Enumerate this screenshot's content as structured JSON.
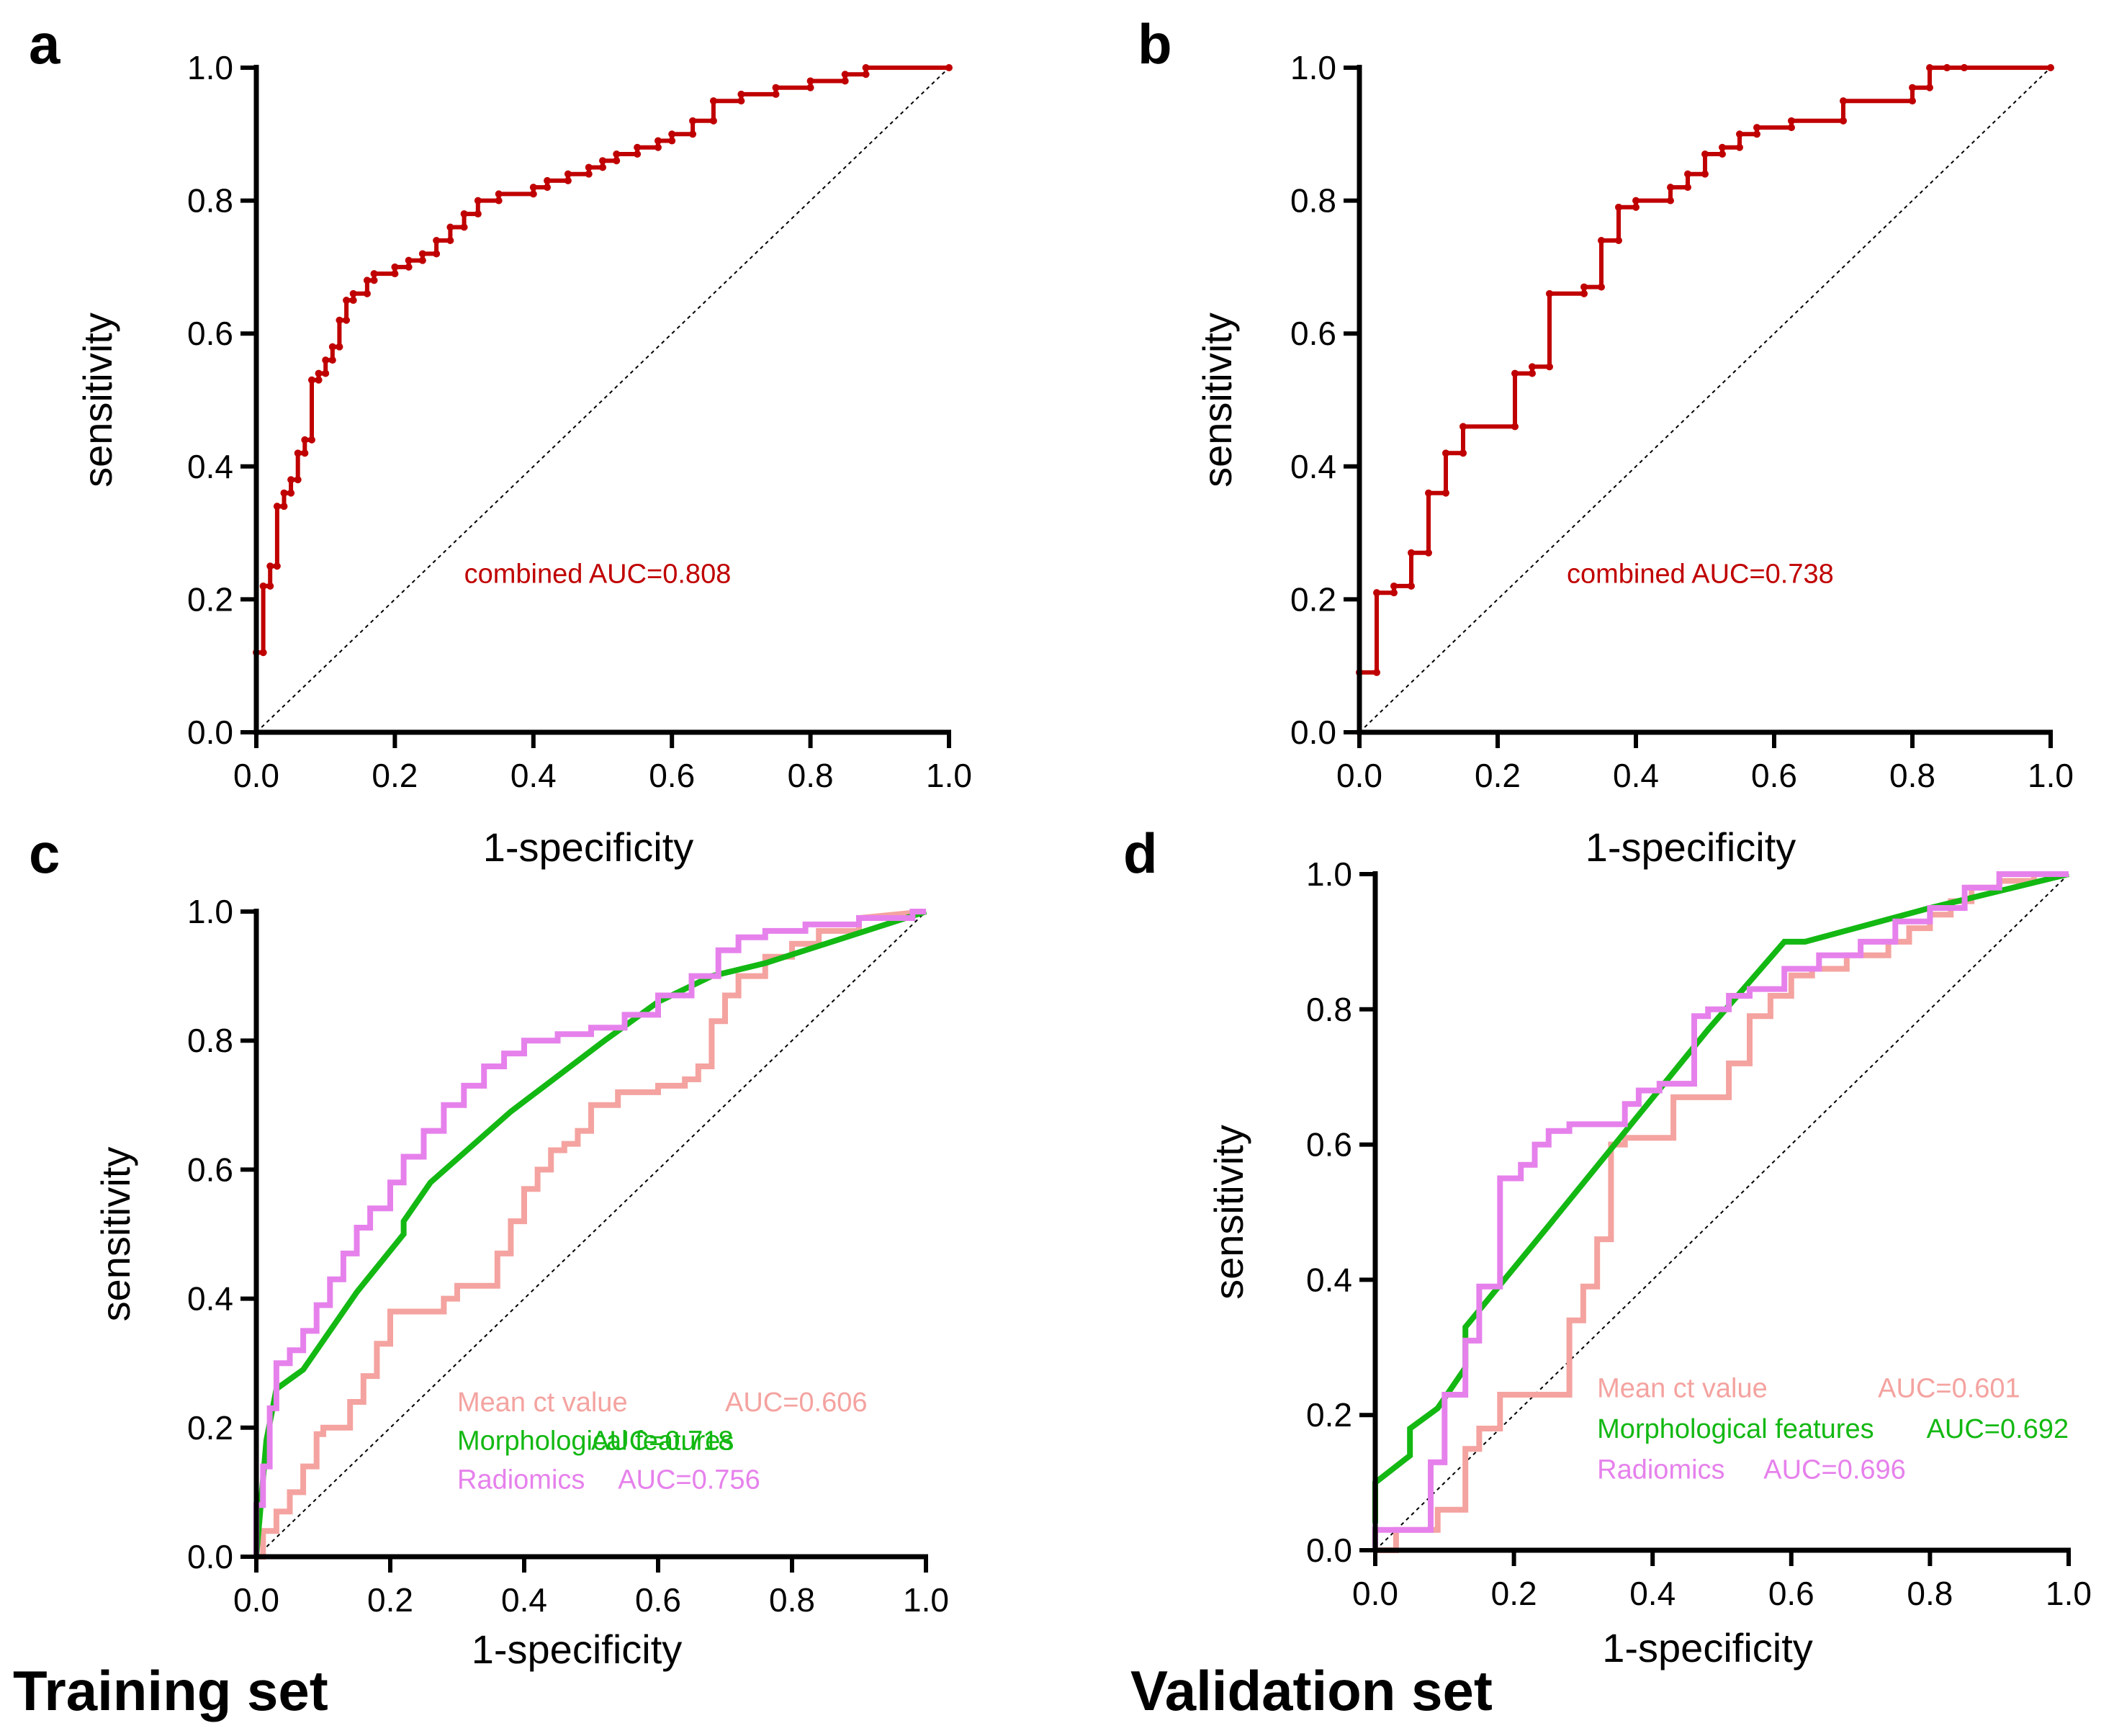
{
  "figure": {
    "set_labels": [
      "Training set",
      "Validation set"
    ]
  },
  "chart_data": [
    {
      "panel": "a",
      "type": "line",
      "xlabel": "1-specificity",
      "ylabel": "sensitivity",
      "xlim": [
        0,
        1
      ],
      "ylim": [
        0,
        1
      ],
      "xticks": [
        "0.0",
        "0.2",
        "0.4",
        "0.6",
        "0.8",
        "1.0"
      ],
      "yticks": [
        "0.0",
        "0.2",
        "0.4",
        "0.6",
        "0.8",
        "1.0"
      ],
      "reference_line": true,
      "series": [
        {
          "name": "combined",
          "color": "#c00000",
          "markers": true,
          "auc_label": "combined AUC=0.808",
          "x": [
            0,
            0,
            0.01,
            0.01,
            0.02,
            0.02,
            0.03,
            0.03,
            0.04,
            0.04,
            0.05,
            0.05,
            0.06,
            0.06,
            0.07,
            0.07,
            0.08,
            0.08,
            0.09,
            0.09,
            0.1,
            0.1,
            0.11,
            0.11,
            0.12,
            0.12,
            0.13,
            0.13,
            0.14,
            0.14,
            0.16,
            0.16,
            0.17,
            0.17,
            0.2,
            0.2,
            0.22,
            0.22,
            0.24,
            0.24,
            0.26,
            0.26,
            0.28,
            0.28,
            0.3,
            0.3,
            0.32,
            0.32,
            0.35,
            0.35,
            0.4,
            0.4,
            0.42,
            0.42,
            0.45,
            0.45,
            0.48,
            0.48,
            0.5,
            0.5,
            0.52,
            0.52,
            0.55,
            0.55,
            0.58,
            0.58,
            0.6,
            0.6,
            0.63,
            0.63,
            0.66,
            0.66,
            0.7,
            0.7,
            0.75,
            0.75,
            0.8,
            0.8,
            0.85,
            0.85,
            0.88,
            0.88,
            1.0
          ],
          "y": [
            0,
            0.12,
            0.12,
            0.22,
            0.22,
            0.25,
            0.25,
            0.34,
            0.34,
            0.36,
            0.36,
            0.38,
            0.38,
            0.42,
            0.42,
            0.44,
            0.44,
            0.53,
            0.53,
            0.54,
            0.54,
            0.56,
            0.56,
            0.58,
            0.58,
            0.62,
            0.62,
            0.65,
            0.65,
            0.66,
            0.66,
            0.68,
            0.68,
            0.69,
            0.69,
            0.7,
            0.7,
            0.71,
            0.71,
            0.72,
            0.72,
            0.74,
            0.74,
            0.76,
            0.76,
            0.78,
            0.78,
            0.8,
            0.8,
            0.81,
            0.81,
            0.82,
            0.82,
            0.83,
            0.83,
            0.84,
            0.84,
            0.85,
            0.85,
            0.86,
            0.86,
            0.87,
            0.87,
            0.88,
            0.88,
            0.89,
            0.89,
            0.9,
            0.9,
            0.92,
            0.92,
            0.95,
            0.95,
            0.96,
            0.96,
            0.97,
            0.97,
            0.98,
            0.98,
            0.99,
            0.99,
            1.0,
            1.0
          ]
        }
      ]
    },
    {
      "panel": "b",
      "type": "line",
      "xlabel": "1-specificity",
      "ylabel": "sensitivity",
      "xlim": [
        0,
        1
      ],
      "ylim": [
        0,
        1
      ],
      "xticks": [
        "0.0",
        "0.2",
        "0.4",
        "0.6",
        "0.8",
        "1.0"
      ],
      "yticks": [
        "0.0",
        "0.2",
        "0.4",
        "0.6",
        "0.8",
        "1.0"
      ],
      "reference_line": true,
      "series": [
        {
          "name": "combined",
          "color": "#c00000",
          "markers": true,
          "auc_label": "combined AUC=0.738",
          "x": [
            0,
            0,
            0.025,
            0.025,
            0.05,
            0.05,
            0.075,
            0.075,
            0.1,
            0.1,
            0.125,
            0.125,
            0.15,
            0.15,
            0.225,
            0.225,
            0.25,
            0.25,
            0.275,
            0.275,
            0.325,
            0.325,
            0.35,
            0.35,
            0.375,
            0.375,
            0.4,
            0.4,
            0.45,
            0.45,
            0.475,
            0.475,
            0.5,
            0.5,
            0.525,
            0.525,
            0.55,
            0.55,
            0.575,
            0.575,
            0.625,
            0.625,
            0.7,
            0.7,
            0.8,
            0.8,
            0.825,
            0.825,
            0.85,
            0.85,
            0.875,
            0.875,
            1.0
          ],
          "y": [
            0,
            0.09,
            0.09,
            0.21,
            0.21,
            0.22,
            0.22,
            0.27,
            0.27,
            0.36,
            0.36,
            0.42,
            0.42,
            0.46,
            0.46,
            0.54,
            0.54,
            0.55,
            0.55,
            0.66,
            0.66,
            0.67,
            0.67,
            0.74,
            0.74,
            0.79,
            0.79,
            0.8,
            0.8,
            0.82,
            0.82,
            0.84,
            0.84,
            0.87,
            0.87,
            0.88,
            0.88,
            0.9,
            0.9,
            0.91,
            0.91,
            0.92,
            0.92,
            0.95,
            0.95,
            0.97,
            0.97,
            1.0,
            1.0,
            1.0,
            1.0,
            1.0,
            1.0
          ]
        }
      ]
    },
    {
      "panel": "c",
      "type": "line",
      "xlabel": "1-specificity",
      "ylabel": "sensitivity",
      "xlim": [
        0,
        1
      ],
      "ylim": [
        0,
        1
      ],
      "xticks": [
        "0.0",
        "0.2",
        "0.4",
        "0.6",
        "0.8",
        "1.0"
      ],
      "yticks": [
        "0.0",
        "0.2",
        "0.4",
        "0.6",
        "0.8",
        "1.0"
      ],
      "reference_line": true,
      "series": [
        {
          "name": "Mean ct value",
          "color": "#f4a3a0",
          "auc_label": "AUC=0.606",
          "x": [
            0,
            0.01,
            0.01,
            0.03,
            0.03,
            0.05,
            0.05,
            0.07,
            0.07,
            0.09,
            0.09,
            0.1,
            0.1,
            0.14,
            0.14,
            0.16,
            0.16,
            0.18,
            0.18,
            0.2,
            0.2,
            0.2,
            0.28,
            0.28,
            0.3,
            0.3,
            0.36,
            0.36,
            0.38,
            0.38,
            0.4,
            0.4,
            0.42,
            0.42,
            0.44,
            0.44,
            0.46,
            0.46,
            0.48,
            0.48,
            0.5,
            0.5,
            0.54,
            0.54,
            0.6,
            0.6,
            0.64,
            0.64,
            0.66,
            0.66,
            0.68,
            0.68,
            0.7,
            0.7,
            0.72,
            0.72,
            0.76,
            0.76,
            0.8,
            0.8,
            0.84,
            0.84,
            0.9,
            0.9,
            1.0
          ],
          "y": [
            0,
            0,
            0.04,
            0.04,
            0.07,
            0.07,
            0.1,
            0.1,
            0.14,
            0.14,
            0.19,
            0.19,
            0.2,
            0.2,
            0.24,
            0.24,
            0.28,
            0.28,
            0.33,
            0.33,
            0.38,
            0.38,
            0.38,
            0.4,
            0.4,
            0.42,
            0.42,
            0.47,
            0.47,
            0.52,
            0.52,
            0.57,
            0.57,
            0.6,
            0.6,
            0.63,
            0.63,
            0.64,
            0.64,
            0.66,
            0.66,
            0.7,
            0.7,
            0.72,
            0.72,
            0.73,
            0.73,
            0.74,
            0.74,
            0.76,
            0.76,
            0.83,
            0.83,
            0.87,
            0.87,
            0.9,
            0.9,
            0.93,
            0.93,
            0.95,
            0.95,
            0.97,
            0.97,
            0.99,
            1.0
          ]
        },
        {
          "name": "Morphological features",
          "color": "#13b813",
          "auc_label": "AUC=0.718",
          "x": [
            0,
            0.015,
            0.03,
            0.07,
            0.15,
            0.22,
            0.22,
            0.26,
            0.38,
            0.52,
            0.6,
            0.68,
            0.76,
            0.88,
            1.0
          ],
          "y": [
            0,
            0.18,
            0.26,
            0.29,
            0.41,
            0.5,
            0.52,
            0.58,
            0.69,
            0.8,
            0.86,
            0.9,
            0.92,
            0.96,
            1.0
          ]
        },
        {
          "name": "Radiomics",
          "color": "#e681ec",
          "auc_label": "AUC=0.756",
          "x": [
            0,
            0,
            0.01,
            0.01,
            0.02,
            0.02,
            0.03,
            0.03,
            0.05,
            0.05,
            0.07,
            0.07,
            0.09,
            0.09,
            0.11,
            0.11,
            0.13,
            0.13,
            0.15,
            0.15,
            0.17,
            0.17,
            0.2,
            0.2,
            0.22,
            0.22,
            0.25,
            0.25,
            0.28,
            0.28,
            0.31,
            0.31,
            0.34,
            0.34,
            0.37,
            0.37,
            0.4,
            0.4,
            0.45,
            0.45,
            0.5,
            0.5,
            0.55,
            0.55,
            0.6,
            0.6,
            0.65,
            0.65,
            0.69,
            0.69,
            0.72,
            0.72,
            0.76,
            0.76,
            0.82,
            0.82,
            0.9,
            0.9,
            0.98,
            0.98,
            1.0
          ],
          "y": [
            0,
            0.08,
            0.08,
            0.14,
            0.14,
            0.23,
            0.23,
            0.3,
            0.3,
            0.32,
            0.32,
            0.35,
            0.35,
            0.39,
            0.39,
            0.43,
            0.43,
            0.47,
            0.47,
            0.51,
            0.51,
            0.54,
            0.54,
            0.58,
            0.58,
            0.62,
            0.62,
            0.66,
            0.66,
            0.7,
            0.7,
            0.73,
            0.73,
            0.76,
            0.76,
            0.78,
            0.78,
            0.8,
            0.8,
            0.81,
            0.81,
            0.82,
            0.82,
            0.84,
            0.84,
            0.87,
            0.87,
            0.9,
            0.9,
            0.94,
            0.94,
            0.96,
            0.96,
            0.97,
            0.97,
            0.98,
            0.98,
            0.99,
            0.99,
            1.0,
            1.0
          ]
        }
      ]
    },
    {
      "panel": "d",
      "type": "line",
      "xlabel": "1-specificity",
      "ylabel": "sensitivity",
      "xlim": [
        0,
        1
      ],
      "ylim": [
        0,
        1
      ],
      "xticks": [
        "0.0",
        "0.2",
        "0.4",
        "0.6",
        "0.8",
        "1.0"
      ],
      "yticks": [
        "0.0",
        "0.2",
        "0.4",
        "0.6",
        "0.8",
        "1.0"
      ],
      "reference_line": true,
      "series": [
        {
          "name": "Mean ct value",
          "color": "#f4a3a0",
          "auc_label": "AUC=0.601",
          "x": [
            0,
            0.03,
            0.03,
            0.09,
            0.09,
            0.13,
            0.13,
            0.15,
            0.15,
            0.18,
            0.18,
            0.21,
            0.21,
            0.28,
            0.28,
            0.3,
            0.3,
            0.32,
            0.32,
            0.34,
            0.34,
            0.36,
            0.36,
            0.38,
            0.38,
            0.43,
            0.43,
            0.46,
            0.46,
            0.51,
            0.51,
            0.54,
            0.54,
            0.57,
            0.57,
            0.6,
            0.6,
            0.63,
            0.63,
            0.68,
            0.68,
            0.74,
            0.74,
            0.77,
            0.77,
            0.8,
            0.8,
            0.83,
            0.83,
            0.86,
            0.86,
            0.9,
            0.9,
            0.95,
            0.95,
            1.0
          ],
          "y": [
            0,
            0,
            0.03,
            0.03,
            0.06,
            0.06,
            0.15,
            0.15,
            0.18,
            0.18,
            0.23,
            0.23,
            0.23,
            0.23,
            0.34,
            0.34,
            0.39,
            0.39,
            0.46,
            0.46,
            0.6,
            0.6,
            0.61,
            0.61,
            0.61,
            0.61,
            0.67,
            0.67,
            0.67,
            0.67,
            0.72,
            0.72,
            0.79,
            0.79,
            0.82,
            0.82,
            0.85,
            0.85,
            0.86,
            0.86,
            0.88,
            0.88,
            0.9,
            0.9,
            0.92,
            0.92,
            0.94,
            0.94,
            0.96,
            0.96,
            0.98,
            0.98,
            0.99,
            0.99,
            1.0,
            1.0
          ]
        },
        {
          "name": "Morphological features",
          "color": "#13b813",
          "auc_label": "AUC=0.692",
          "x": [
            0,
            0,
            0.05,
            0.05,
            0.09,
            0.13,
            0.13,
            0.25,
            0.48,
            0.59,
            0.62,
            0.8,
            1.0
          ],
          "y": [
            0.04,
            0.1,
            0.14,
            0.18,
            0.21,
            0.27,
            0.33,
            0.48,
            0.77,
            0.9,
            0.9,
            0.95,
            1.0
          ]
        },
        {
          "name": "Radiomics",
          "color": "#e681ec",
          "auc_label": "AUC=0.696",
          "x": [
            0,
            0,
            0.08,
            0.08,
            0.1,
            0.1,
            0.13,
            0.13,
            0.15,
            0.15,
            0.18,
            0.18,
            0.21,
            0.21,
            0.23,
            0.23,
            0.25,
            0.25,
            0.28,
            0.28,
            0.36,
            0.36,
            0.38,
            0.38,
            0.41,
            0.41,
            0.46,
            0.46,
            0.48,
            0.48,
            0.51,
            0.51,
            0.54,
            0.54,
            0.59,
            0.59,
            0.64,
            0.64,
            0.7,
            0.7,
            0.75,
            0.75,
            0.8,
            0.8,
            0.85,
            0.85,
            0.9,
            0.9,
            1.0
          ],
          "y": [
            0,
            0.03,
            0.03,
            0.13,
            0.13,
            0.23,
            0.23,
            0.31,
            0.31,
            0.39,
            0.39,
            0.55,
            0.55,
            0.57,
            0.57,
            0.6,
            0.6,
            0.62,
            0.62,
            0.63,
            0.63,
            0.66,
            0.66,
            0.68,
            0.68,
            0.69,
            0.69,
            0.79,
            0.79,
            0.8,
            0.8,
            0.82,
            0.82,
            0.83,
            0.83,
            0.86,
            0.86,
            0.88,
            0.88,
            0.9,
            0.9,
            0.93,
            0.93,
            0.95,
            0.95,
            0.98,
            0.98,
            1.0,
            1.0
          ]
        }
      ]
    }
  ]
}
